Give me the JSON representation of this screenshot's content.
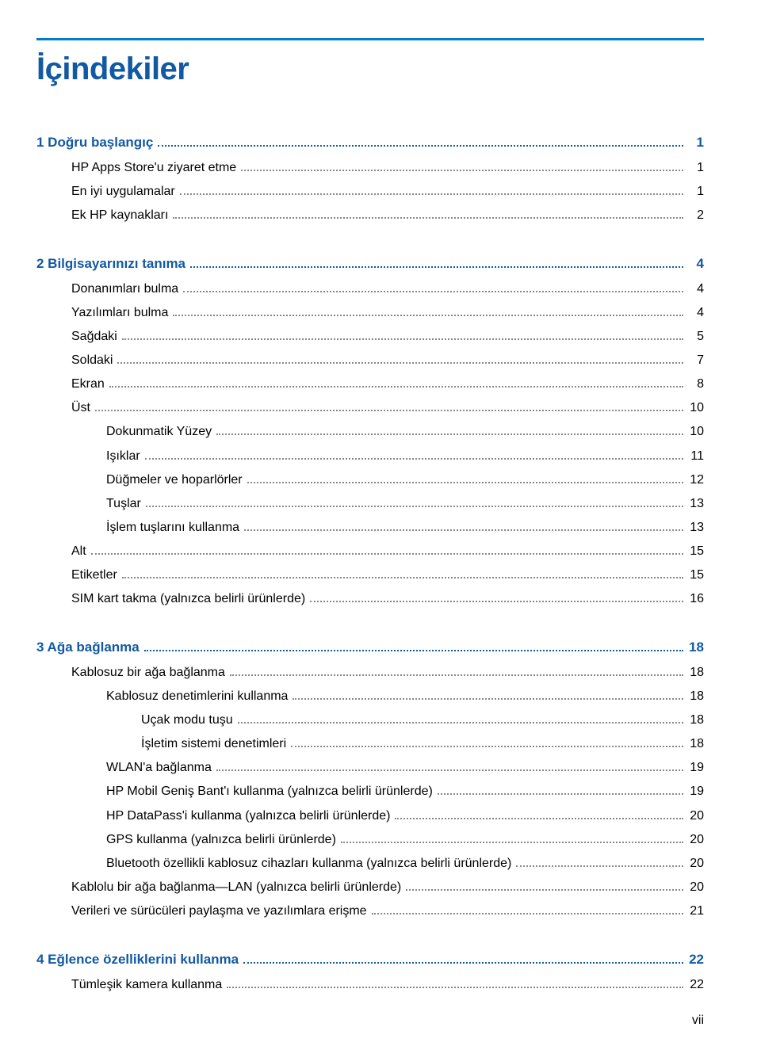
{
  "title": "İçindekiler",
  "accent_color": "#1159a3",
  "rule_color": "#007dc3",
  "leader_color": "#888888",
  "text_color": "#000000",
  "title_fontsize_pt": 30,
  "section_fontsize_pt": 13,
  "item_fontsize_pt": 12,
  "entries": [
    {
      "type": "section",
      "label": "1  Doğru başlangıç",
      "page": "1",
      "indent": 0
    },
    {
      "type": "item",
      "label": "HP Apps Store'u ziyaret etme",
      "page": "1",
      "indent": 1
    },
    {
      "type": "item",
      "label": "En iyi uygulamalar",
      "page": "1",
      "indent": 1
    },
    {
      "type": "item",
      "label": "Ek HP kaynakları",
      "page": "2",
      "indent": 1
    },
    {
      "type": "space"
    },
    {
      "type": "section",
      "label": "2  Bilgisayarınızı tanıma",
      "page": "4",
      "indent": 0
    },
    {
      "type": "item",
      "label": "Donanımları bulma",
      "page": "4",
      "indent": 1
    },
    {
      "type": "item",
      "label": "Yazılımları bulma",
      "page": "4",
      "indent": 1
    },
    {
      "type": "item",
      "label": "Sağdaki",
      "page": "5",
      "indent": 1
    },
    {
      "type": "item",
      "label": "Soldaki",
      "page": "7",
      "indent": 1
    },
    {
      "type": "item",
      "label": "Ekran",
      "page": "8",
      "indent": 1
    },
    {
      "type": "item",
      "label": "Üst",
      "page": "10",
      "indent": 1
    },
    {
      "type": "item",
      "label": "Dokunmatik Yüzey",
      "page": "10",
      "indent": 2
    },
    {
      "type": "item",
      "label": "Işıklar",
      "page": "11",
      "indent": 2
    },
    {
      "type": "item",
      "label": "Düğmeler ve hoparlörler",
      "page": "12",
      "indent": 2
    },
    {
      "type": "item",
      "label": "Tuşlar",
      "page": "13",
      "indent": 2
    },
    {
      "type": "item",
      "label": "İşlem tuşlarını kullanma",
      "page": "13",
      "indent": 2
    },
    {
      "type": "item",
      "label": "Alt",
      "page": "15",
      "indent": 1
    },
    {
      "type": "item",
      "label": "Etiketler",
      "page": "15",
      "indent": 1
    },
    {
      "type": "item",
      "label": "SIM kart takma (yalnızca belirli ürünlerde)",
      "page": "16",
      "indent": 1
    },
    {
      "type": "space"
    },
    {
      "type": "section",
      "label": "3  Ağa bağlanma",
      "page": "18",
      "indent": 0
    },
    {
      "type": "item",
      "label": "Kablosuz bir ağa bağlanma",
      "page": "18",
      "indent": 1
    },
    {
      "type": "item",
      "label": "Kablosuz denetimlerini kullanma",
      "page": "18",
      "indent": 2
    },
    {
      "type": "item",
      "label": "Uçak modu tuşu",
      "page": "18",
      "indent": 3
    },
    {
      "type": "item",
      "label": "İşletim sistemi denetimleri",
      "page": "18",
      "indent": 3
    },
    {
      "type": "item",
      "label": "WLAN'a bağlanma",
      "page": "19",
      "indent": 2
    },
    {
      "type": "item",
      "label": "HP Mobil Geniş Bant'ı kullanma (yalnızca belirli ürünlerde)",
      "page": "19",
      "indent": 2
    },
    {
      "type": "item",
      "label": "HP DataPass'i kullanma (yalnızca belirli ürünlerde)",
      "page": "20",
      "indent": 2
    },
    {
      "type": "item",
      "label": "GPS kullanma (yalnızca belirli ürünlerde)",
      "page": "20",
      "indent": 2
    },
    {
      "type": "item",
      "label": "Bluetooth özellikli kablosuz cihazları kullanma (yalnızca belirli ürünlerde)",
      "page": "20",
      "indent": 2
    },
    {
      "type": "item",
      "label": "Kablolu bir ağa bağlanma—LAN (yalnızca belirli ürünlerde)",
      "page": "20",
      "indent": 1
    },
    {
      "type": "item",
      "label": "Verileri ve sürücüleri paylaşma ve yazılımlara erişme",
      "page": "21",
      "indent": 1
    },
    {
      "type": "space"
    },
    {
      "type": "section",
      "label": "4  Eğlence özelliklerini kullanma",
      "page": "22",
      "indent": 0
    },
    {
      "type": "item",
      "label": "Tümleşik kamera kullanma",
      "page": "22",
      "indent": 1
    }
  ],
  "page_number": "vii"
}
